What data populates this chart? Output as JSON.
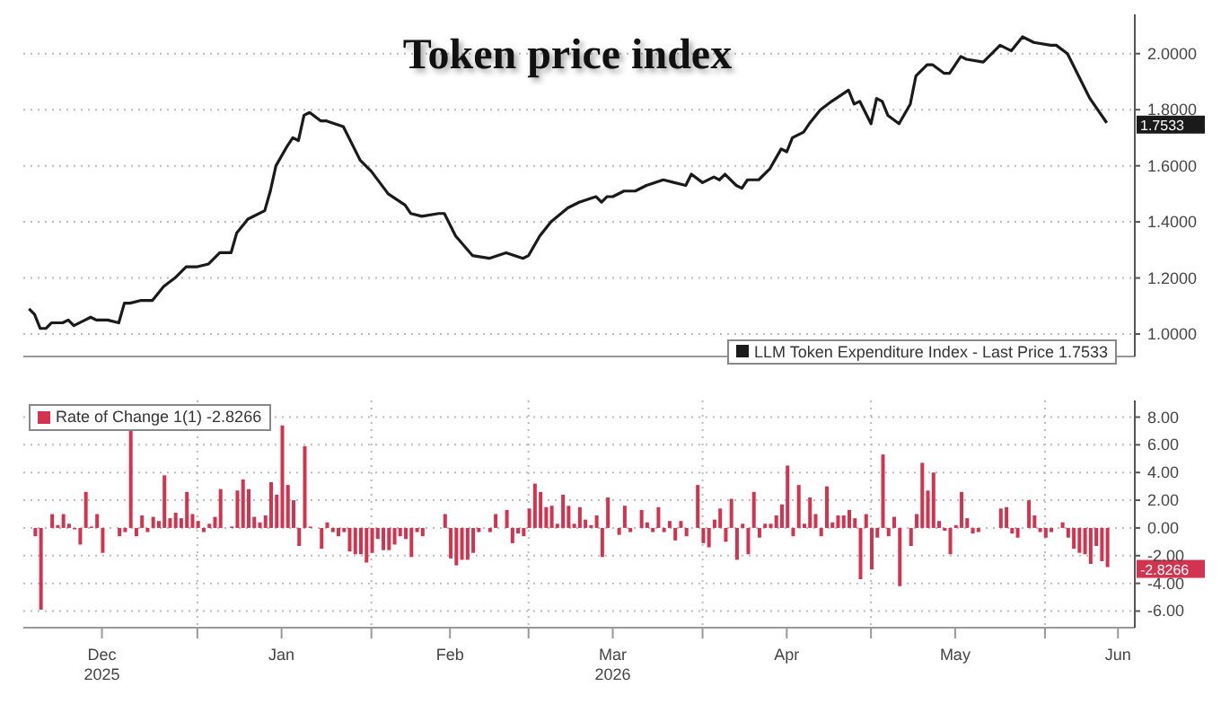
{
  "chart_data": [
    {
      "type": "line",
      "title": "Token price index",
      "xlim": [
        "2025-12-01",
        "2026-06-17"
      ],
      "xticks": [
        {
          "value": "2026-01-01",
          "label": null
        },
        {
          "value": "2026-02-01",
          "label": null
        },
        {
          "value": "2026-03-01",
          "label": null
        },
        {
          "value": "2026-04-01",
          "label": null
        },
        {
          "value": "2026-05-01",
          "label": null
        },
        {
          "value": "2026-06-01",
          "label": null
        }
      ],
      "ylim": [
        0.92,
        2.14
      ],
      "yticks": [
        {
          "value": 1,
          "label": "1.0000"
        },
        {
          "value": 1.2,
          "label": "1.2000"
        },
        {
          "value": 1.4,
          "label": "1.4000"
        },
        {
          "value": 1.6,
          "label": "1.6000"
        },
        {
          "value": 1.8,
          "label": "1.8000"
        },
        {
          "value": 2,
          "label": "2.0000"
        }
      ],
      "tick_labels": "y",
      "grid": true,
      "legend": "bottom right",
      "x": [
        "2025-12-02",
        "2025-12-03",
        "2025-12-04",
        "2025-12-05",
        "2025-12-06",
        "2025-12-08",
        "2025-12-09",
        "2025-12-10",
        "2025-12-12",
        "2025-12-13",
        "2025-12-14",
        "2025-12-16",
        "2025-12-18",
        "2025-12-19",
        "2025-12-20",
        "2025-12-22",
        "2025-12-24",
        "2025-12-26",
        "2025-12-28",
        "2025-12-30",
        "2026-01-01",
        "2026-01-03",
        "2026-01-05",
        "2026-01-07",
        "2026-01-08",
        "2026-01-10",
        "2026-01-13",
        "2026-01-14",
        "2026-01-15",
        "2026-01-17",
        "2026-01-18",
        "2026-01-19",
        "2026-01-20",
        "2026-01-21",
        "2026-01-23",
        "2026-01-24",
        "2026-01-27",
        "2026-01-30",
        "2026-02-01",
        "2026-02-04",
        "2026-02-07",
        "2026-02-08",
        "2026-02-10",
        "2026-02-13",
        "2026-02-14",
        "2026-02-16",
        "2026-02-19",
        "2026-02-22",
        "2026-02-25",
        "2026-02-28",
        "2026-03-01",
        "2026-03-03",
        "2026-03-05",
        "2026-03-08",
        "2026-03-10",
        "2026-03-13",
        "2026-03-14",
        "2026-03-15",
        "2026-03-16",
        "2026-03-18",
        "2026-03-20",
        "2026-03-22",
        "2026-03-25",
        "2026-03-27",
        "2026-03-29",
        "2026-03-30",
        "2026-04-01",
        "2026-04-03",
        "2026-04-04",
        "2026-04-05",
        "2026-04-07",
        "2026-04-08",
        "2026-04-09",
        "2026-04-11",
        "2026-04-13",
        "2026-04-15",
        "2026-04-16",
        "2026-04-17",
        "2026-04-19",
        "2026-04-20",
        "2026-04-22",
        "2026-04-24",
        "2026-04-27",
        "2026-04-28",
        "2026-04-29",
        "2026-05-01",
        "2026-05-02",
        "2026-05-03",
        "2026-05-04",
        "2026-05-06",
        "2026-05-08",
        "2026-05-09",
        "2026-05-11",
        "2026-05-12",
        "2026-05-14",
        "2026-05-15",
        "2026-05-17",
        "2026-05-18",
        "2026-05-21",
        "2026-05-24",
        "2026-05-26",
        "2026-05-28",
        "2026-05-30",
        "2026-06-02",
        "2026-06-03",
        "2026-06-05",
        "2026-06-07",
        "2026-06-09",
        "2026-06-12"
      ],
      "series": [
        {
          "name": "LLM Token Expenditure Index - Last Price 1.7533",
          "color": "#1a1a1a",
          "values": [
            1.09,
            1.07,
            1.02,
            1.02,
            1.04,
            1.04,
            1.05,
            1.03,
            1.05,
            1.06,
            1.05,
            1.05,
            1.04,
            1.11,
            1.11,
            1.12,
            1.12,
            1.17,
            1.2,
            1.24,
            1.24,
            1.25,
            1.29,
            1.29,
            1.36,
            1.41,
            1.44,
            1.51,
            1.6,
            1.67,
            1.7,
            1.69,
            1.78,
            1.79,
            1.76,
            1.76,
            1.74,
            1.62,
            1.58,
            1.5,
            1.46,
            1.43,
            1.42,
            1.43,
            1.43,
            1.35,
            1.28,
            1.27,
            1.29,
            1.27,
            1.28,
            1.35,
            1.4,
            1.45,
            1.47,
            1.49,
            1.47,
            1.49,
            1.49,
            1.51,
            1.51,
            1.53,
            1.55,
            1.54,
            1.53,
            1.57,
            1.54,
            1.56,
            1.55,
            1.57,
            1.53,
            1.52,
            1.55,
            1.55,
            1.59,
            1.66,
            1.65,
            1.7,
            1.72,
            1.75,
            1.8,
            1.83,
            1.87,
            1.82,
            1.83,
            1.75,
            1.84,
            1.83,
            1.78,
            1.75,
            1.82,
            1.92,
            1.96,
            1.96,
            1.93,
            1.93,
            1.99,
            1.98,
            1.97,
            2.03,
            2.01,
            2.06,
            2.04,
            2.03,
            2.03,
            2.0,
            1.92,
            1.84,
            1.7533
          ]
        }
      ],
      "annotations": [
        {
          "text": "1.7533",
          "x": "2026-06-12",
          "y": 1.7533
        }
      ]
    },
    {
      "type": "bar",
      "xlim": [
        "2025-12-01",
        "2026-06-17"
      ],
      "xticks": [
        {
          "value": "2025-12-15",
          "label": "Dec\n2025"
        },
        {
          "value": "2026-01-01",
          "label": null
        },
        {
          "value": "2026-01-16",
          "label": "Jan"
        },
        {
          "value": "2026-02-01",
          "label": null
        },
        {
          "value": "2026-02-15",
          "label": "Feb"
        },
        {
          "value": "2026-03-01",
          "label": null
        },
        {
          "value": "2026-03-16",
          "label": "Mar\n2026"
        },
        {
          "value": "2026-04-01",
          "label": null
        },
        {
          "value": "2026-04-16",
          "label": "Apr"
        },
        {
          "value": "2026-05-01",
          "label": null
        },
        {
          "value": "2026-05-16",
          "label": "May"
        },
        {
          "value": "2026-06-01",
          "label": null
        },
        {
          "value": "2026-06-14",
          "label": "Jun"
        }
      ],
      "ylim": [
        -7.2,
        9.2
      ],
      "yticks": [
        {
          "value": -6,
          "label": "-6.00"
        },
        {
          "value": -4,
          "label": "-4.00"
        },
        {
          "value": -2,
          "label": "-2.00"
        },
        {
          "value": 0,
          "label": "0.00"
        },
        {
          "value": 2,
          "label": "2.00"
        },
        {
          "value": 4,
          "label": "4.00"
        },
        {
          "value": 6,
          "label": "6.00"
        },
        {
          "value": 8,
          "label": "8.00"
        }
      ],
      "grid": true,
      "legend": "top left",
      "x": [
        "2025-12-03",
        "2025-12-04",
        "2025-12-06",
        "2025-12-07",
        "2025-12-08",
        "2025-12-09",
        "2025-12-10",
        "2025-12-11",
        "2025-12-12",
        "2025-12-13",
        "2025-12-14",
        "2025-12-15",
        "2025-12-18",
        "2025-12-19",
        "2025-12-20",
        "2025-12-21",
        "2025-12-22",
        "2025-12-23",
        "2025-12-24",
        "2025-12-25",
        "2025-12-26",
        "2025-12-27",
        "2025-12-28",
        "2025-12-29",
        "2025-12-30",
        "2025-12-31",
        "2026-01-01",
        "2026-01-02",
        "2026-01-03",
        "2026-01-04",
        "2026-01-05",
        "2026-01-07",
        "2026-01-08",
        "2026-01-09",
        "2026-01-10",
        "2026-01-11",
        "2026-01-12",
        "2026-01-13",
        "2026-01-14",
        "2026-01-15",
        "2026-01-16",
        "2026-01-17",
        "2026-01-18",
        "2026-01-19",
        "2026-01-20",
        "2026-01-21",
        "2026-01-23",
        "2026-01-24",
        "2026-01-25",
        "2026-01-26",
        "2026-01-27",
        "2026-01-28",
        "2026-01-29",
        "2026-01-30",
        "2026-01-31",
        "2026-02-01",
        "2026-02-02",
        "2026-02-03",
        "2026-02-04",
        "2026-02-05",
        "2026-02-06",
        "2026-02-07",
        "2026-02-08",
        "2026-02-09",
        "2026-02-10",
        "2026-02-14",
        "2026-02-15",
        "2026-02-16",
        "2026-02-17",
        "2026-02-18",
        "2026-02-19",
        "2026-02-20",
        "2026-02-22",
        "2026-02-23",
        "2026-02-25",
        "2026-02-26",
        "2026-02-27",
        "2026-02-28",
        "2026-03-01",
        "2026-03-02",
        "2026-03-03",
        "2026-03-04",
        "2026-03-05",
        "2026-03-06",
        "2026-03-07",
        "2026-03-08",
        "2026-03-09",
        "2026-03-10",
        "2026-03-11",
        "2026-03-12",
        "2026-03-13",
        "2026-03-14",
        "2026-03-15",
        "2026-03-17",
        "2026-03-18",
        "2026-03-19",
        "2026-03-21",
        "2026-03-22",
        "2026-03-23",
        "2026-03-24",
        "2026-03-25",
        "2026-03-26",
        "2026-03-27",
        "2026-03-28",
        "2026-03-29",
        "2026-03-31",
        "2026-04-01",
        "2026-04-02",
        "2026-04-03",
        "2026-04-04",
        "2026-04-05",
        "2026-04-06",
        "2026-04-07",
        "2026-04-08",
        "2026-04-09",
        "2026-04-10",
        "2026-04-11",
        "2026-04-12",
        "2026-04-13",
        "2026-04-14",
        "2026-04-15",
        "2026-04-16",
        "2026-04-17",
        "2026-04-18",
        "2026-04-19",
        "2026-04-20",
        "2026-04-21",
        "2026-04-22",
        "2026-04-23",
        "2026-04-24",
        "2026-04-25",
        "2026-04-26",
        "2026-04-27",
        "2026-04-28",
        "2026-04-29",
        "2026-04-30",
        "2026-05-01",
        "2026-05-02",
        "2026-05-03",
        "2026-05-04",
        "2026-05-05",
        "2026-05-06",
        "2026-05-08",
        "2026-05-09",
        "2026-05-10",
        "2026-05-11",
        "2026-05-12",
        "2026-05-13",
        "2026-05-14",
        "2026-05-15",
        "2026-05-16",
        "2026-05-17",
        "2026-05-18",
        "2026-05-19",
        "2026-05-20",
        "2026-05-24",
        "2026-05-25",
        "2026-05-26",
        "2026-05-27",
        "2026-05-29",
        "2026-05-30",
        "2026-05-31",
        "2026-06-01",
        "2026-06-02",
        "2026-06-04",
        "2026-06-05",
        "2026-06-06",
        "2026-06-07",
        "2026-06-08",
        "2026-06-09",
        "2026-06-10",
        "2026-06-11",
        "2026-06-12"
      ],
      "series": [
        {
          "name": "Rate of Change 1(1) -2.8266",
          "color": "#d2334f",
          "values": [
            -0.6,
            -5.9,
            1.0,
            0.2,
            1.0,
            0.3,
            -0.1,
            -1.2,
            2.6,
            0.1,
            1.0,
            -1.8,
            -0.6,
            -0.3,
            7.4,
            -0.6,
            0.9,
            -0.3,
            0.8,
            0.5,
            3.8,
            0.7,
            1.1,
            0.7,
            2.6,
            1.0,
            0.5,
            -0.3,
            0.3,
            0.8,
            2.8,
            0.1,
            2.7,
            3.5,
            2.8,
            0.8,
            0.4,
            0.9,
            3.3,
            2.4,
            7.4,
            3.1,
            2.0,
            -1.3,
            5.9,
            0.1,
            -1.5,
            0.4,
            -0.3,
            -0.6,
            -0.3,
            -1.7,
            -1.9,
            -1.9,
            -2.5,
            -1.8,
            -0.8,
            -1.6,
            -1.6,
            -1.2,
            -0.6,
            -0.8,
            -2.1,
            -0.3,
            -0.6,
            1.0,
            -2.2,
            -2.7,
            -2.3,
            -2.3,
            -1.8,
            -0.3,
            -0.3,
            1.0,
            1.3,
            -1.1,
            -0.4,
            -0.6,
            1.4,
            3.2,
            2.6,
            1.5,
            1.6,
            0.3,
            2.4,
            1.6,
            0.3,
            1.5,
            0.6,
            0.2,
            0.9,
            -2.1,
            2.2,
            -0.5,
            1.6,
            -0.3,
            1.3,
            0.4,
            -0.3,
            1.5,
            -0.3,
            0.5,
            -0.9,
            0.5,
            -0.6,
            3.1,
            -1.1,
            -1.4,
            0.6,
            1.4,
            -1.0,
            2.1,
            -2.3,
            0.3,
            -1.9,
            2.6,
            -0.7,
            0.3,
            0.3,
            0.9,
            1.7,
            4.5,
            -0.6,
            3.1,
            0.3,
            2.2,
            1.0,
            -0.6,
            3.0,
            0.4,
            0.9,
            0.9,
            1.3,
            0.7,
            -3.7,
            1.0,
            -3.0,
            -0.7,
            5.3,
            -0.6,
            0.8,
            -4.2,
            -1.3,
            1.0,
            4.7,
            2.7,
            4.0,
            0.5,
            -0.2,
            -1.9,
            0.2,
            2.6,
            0.7,
            -0.4,
            -0.3,
            1.4,
            1.5,
            -0.4,
            -0.7,
            2.0,
            0.9,
            -0.3,
            -0.7,
            -0.3,
            0.4,
            -0.7,
            -1.5,
            -1.8,
            -1.9,
            -2.6,
            -1.3,
            -2.4,
            -2.8266
          ]
        }
      ],
      "annotations": [
        {
          "text": "-2.8266",
          "x": "2026-06-12",
          "y": -2.8266
        }
      ]
    }
  ]
}
